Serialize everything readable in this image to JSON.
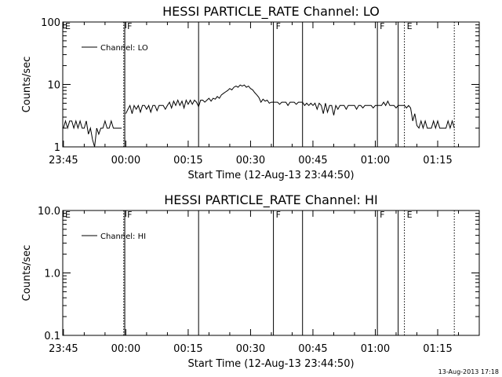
{
  "footer": {
    "timestamp": "13-Aug-2013 17:18"
  },
  "chart_data": [
    {
      "type": "line",
      "title": "HESSI PARTICLE_RATE Channel: LO",
      "xlabel": "Start Time (12-Aug-13 23:44:50)",
      "ylabel": "Counts/sec",
      "y_scale": "log",
      "ylim": [
        1,
        100
      ],
      "y_ticks": [
        1,
        10,
        100
      ],
      "y_tick_labels": [
        "1",
        "10",
        "100"
      ],
      "xlim": [
        "23:44:50",
        "01:25:00"
      ],
      "x_ticks": [
        "23:45",
        "00:00",
        "00:15",
        "00:30",
        "00:45",
        "01:00",
        "01:15"
      ],
      "legend": {
        "entries": [
          "Channel: LO"
        ],
        "placement": "top-left"
      },
      "markers": [
        {
          "label": "E",
          "time": "23:44:50",
          "style": "solid"
        },
        {
          "label": "",
          "time": "23:59:30",
          "style": "dotted"
        },
        {
          "label": "F",
          "time": "23:59:45",
          "style": "solid"
        },
        {
          "label": "",
          "time": "00:17:30",
          "style": "solid"
        },
        {
          "label": "F",
          "time": "00:35:30",
          "style": "solid"
        },
        {
          "label": "",
          "time": "00:42:30",
          "style": "solid"
        },
        {
          "label": "F",
          "time": "01:00:30",
          "style": "solid"
        },
        {
          "label": "",
          "time": "01:05:30",
          "style": "solid"
        },
        {
          "label": "E",
          "time": "01:07:00",
          "style": "dotted"
        },
        {
          "label": "",
          "time": "01:19:00",
          "style": "dotted"
        }
      ],
      "series": [
        {
          "segments": [
            [
              [
                "23:45",
                2
              ],
              [
                "23:45:30",
                2.6
              ],
              [
                "23:46",
                2
              ],
              [
                "23:46:30",
                2.6
              ],
              [
                "23:47",
                2.6
              ],
              [
                "23:47:30",
                2
              ],
              [
                "23:48",
                2.6
              ],
              [
                "23:48:30",
                2
              ],
              [
                "23:49",
                2.6
              ],
              [
                "23:49:30",
                2
              ],
              [
                "23:50",
                2
              ],
              [
                "23:50:30",
                2.6
              ],
              [
                "23:51",
                1.6
              ],
              [
                "23:51:30",
                2
              ],
              [
                "23:52",
                1.3
              ],
              [
                "23:52:30",
                1
              ],
              [
                "23:53",
                2
              ],
              [
                "23:53:30",
                1.6
              ],
              [
                "23:54",
                2
              ],
              [
                "23:54:30",
                2
              ],
              [
                "23:55",
                2.6
              ],
              [
                "23:55:30",
                2
              ],
              [
                "23:56",
                2
              ],
              [
                "23:56:30",
                2.6
              ],
              [
                "23:57",
                2
              ],
              [
                "23:57:30",
                2
              ],
              [
                "23:58",
                2
              ],
              [
                "23:58:30",
                2
              ],
              [
                "23:59",
                2
              ]
            ],
            [
              [
                "00:00",
                3.4
              ],
              [
                "00:00:30",
                4
              ],
              [
                "00:01",
                4.6
              ],
              [
                "00:01:30",
                3.4
              ],
              [
                "00:02",
                4.6
              ],
              [
                "00:02:30",
                4
              ],
              [
                "00:03",
                4.6
              ],
              [
                "00:03:30",
                3.6
              ],
              [
                "00:04",
                4.6
              ],
              [
                "00:04:30",
                4.6
              ],
              [
                "00:05",
                4
              ],
              [
                "00:05:30",
                4.6
              ],
              [
                "00:06",
                3.6
              ],
              [
                "00:06:30",
                4.6
              ],
              [
                "00:07",
                4.6
              ],
              [
                "00:07:30",
                3.8
              ],
              [
                "00:08",
                4.6
              ],
              [
                "00:08:30",
                4.6
              ],
              [
                "00:09",
                4.6
              ],
              [
                "00:09:30",
                4
              ],
              [
                "00:10",
                4.6
              ],
              [
                "00:10:30",
                5.2
              ],
              [
                "00:11",
                4.2
              ],
              [
                "00:11:30",
                5.4
              ],
              [
                "00:12",
                4.6
              ],
              [
                "00:12:30",
                5.6
              ],
              [
                "00:13",
                4.6
              ],
              [
                "00:13:30",
                5.4
              ],
              [
                "00:14",
                4.2
              ],
              [
                "00:14:30",
                5.6
              ],
              [
                "00:15",
                4.8
              ],
              [
                "00:15:30",
                5.6
              ],
              [
                "00:16",
                4.8
              ],
              [
                "00:16:30",
                5.6
              ],
              [
                "00:17",
                5.2
              ],
              [
                "00:17:30",
                4.4
              ],
              [
                "00:18",
                5.6
              ],
              [
                "00:18:30",
                5.6
              ],
              [
                "00:19",
                5.2
              ],
              [
                "00:19:30",
                5.6
              ],
              [
                "00:20",
                6
              ],
              [
                "00:20:30",
                5.4
              ],
              [
                "00:21",
                6
              ],
              [
                "00:21:30",
                5.8
              ],
              [
                "00:22",
                6.4
              ],
              [
                "00:22:30",
                6
              ],
              [
                "00:23",
                6.8
              ],
              [
                "00:23:30",
                7.2
              ],
              [
                "00:24",
                7.6
              ],
              [
                "00:24:30",
                8
              ],
              [
                "00:25",
                8.6
              ],
              [
                "00:25:30",
                8.2
              ],
              [
                "00:26",
                9
              ],
              [
                "00:26:30",
                9.4
              ],
              [
                "00:27",
                9
              ],
              [
                "00:27:30",
                9.8
              ],
              [
                "00:28",
                9.4
              ],
              [
                "00:28:30",
                9.8
              ],
              [
                "00:29",
                9
              ],
              [
                "00:29:30",
                9.4
              ],
              [
                "00:30",
                8.6
              ],
              [
                "00:30:30",
                8.2
              ],
              [
                "00:31",
                7.4
              ],
              [
                "00:31:30",
                6.8
              ],
              [
                "00:32",
                6.2
              ],
              [
                "00:32:30",
                5.2
              ],
              [
                "00:33",
                5.8
              ],
              [
                "00:33:30",
                5.4
              ],
              [
                "00:34",
                5.6
              ],
              [
                "00:34:30",
                5
              ],
              [
                "00:35",
                5.2
              ],
              [
                "00:35:30",
                5.2
              ],
              [
                "00:36",
                5.2
              ],
              [
                "00:36:30",
                5.2
              ],
              [
                "00:37",
                4.8
              ],
              [
                "00:37:30",
                5.2
              ],
              [
                "00:38",
                5.2
              ],
              [
                "00:38:30",
                5.2
              ],
              [
                "00:39",
                4.6
              ],
              [
                "00:39:30",
                5.2
              ],
              [
                "00:40",
                5.2
              ],
              [
                "00:40:30",
                5.2
              ],
              [
                "00:41",
                4.8
              ],
              [
                "00:41:30",
                5.2
              ],
              [
                "00:42",
                5.2
              ],
              [
                "00:42:30",
                5.2
              ],
              [
                "00:43",
                4.6
              ],
              [
                "00:43:30",
                5
              ],
              [
                "00:44",
                4.6
              ],
              [
                "00:44:30",
                5
              ],
              [
                "00:45",
                4.6
              ],
              [
                "00:45:30",
                5
              ],
              [
                "00:46",
                4
              ],
              [
                "00:46:30",
                5
              ],
              [
                "00:47",
                4.6
              ],
              [
                "00:47:30",
                3.4
              ],
              [
                "00:48",
                5
              ],
              [
                "00:48:30",
                3.6
              ],
              [
                "00:49",
                4.6
              ],
              [
                "00:49:30",
                4.6
              ],
              [
                "00:50",
                3.2
              ],
              [
                "00:50:30",
                4.6
              ],
              [
                "00:51",
                4
              ],
              [
                "00:51:30",
                4.6
              ],
              [
                "00:52",
                4.6
              ],
              [
                "00:52:30",
                4.6
              ],
              [
                "00:53",
                4
              ],
              [
                "00:53:30",
                4.6
              ],
              [
                "00:54",
                4.6
              ],
              [
                "00:54:30",
                4.6
              ],
              [
                "00:55",
                4.6
              ],
              [
                "00:55:30",
                4
              ],
              [
                "00:56",
                4.6
              ],
              [
                "00:56:30",
                4.6
              ],
              [
                "00:57",
                4.2
              ],
              [
                "00:57:30",
                4.6
              ],
              [
                "00:58",
                4.6
              ],
              [
                "00:58:30",
                4.6
              ],
              [
                "00:59",
                4.6
              ],
              [
                "00:59:30",
                4.2
              ],
              [
                "01:00",
                4.6
              ],
              [
                "01:00:30",
                4.6
              ],
              [
                "01:01",
                4.6
              ],
              [
                "01:01:30",
                4.6
              ],
              [
                "01:02",
                5.2
              ],
              [
                "01:02:30",
                4.6
              ],
              [
                "01:03",
                5.4
              ],
              [
                "01:03:30",
                4.6
              ],
              [
                "01:04",
                4.6
              ],
              [
                "01:04:30",
                4.6
              ],
              [
                "01:05",
                4.2
              ],
              [
                "01:05:30",
                4.6
              ],
              [
                "01:06",
                4.6
              ],
              [
                "01:06:30",
                4.6
              ],
              [
                "01:07",
                4.6
              ],
              [
                "01:07:30",
                4.2
              ],
              [
                "01:08",
                4.6
              ],
              [
                "01:08:30",
                4.2
              ],
              [
                "01:09",
                2.6
              ],
              [
                "01:09:30",
                3.4
              ],
              [
                "01:10",
                2.2
              ],
              [
                "01:10:30",
                2
              ],
              [
                "01:11",
                2.6
              ],
              [
                "01:11:30",
                2
              ],
              [
                "01:12",
                2.6
              ],
              [
                "01:12:30",
                2
              ],
              [
                "01:13",
                2
              ],
              [
                "01:13:30",
                2
              ],
              [
                "01:14",
                2.6
              ],
              [
                "01:14:30",
                2
              ],
              [
                "01:15",
                2.6
              ],
              [
                "01:15:30",
                2
              ],
              [
                "01:16",
                2
              ],
              [
                "01:16:30",
                2
              ],
              [
                "01:17",
                2
              ],
              [
                "01:17:30",
                2.6
              ],
              [
                "01:18",
                2
              ],
              [
                "01:18:30",
                2.6
              ],
              [
                "01:19",
                2
              ]
            ]
          ]
        }
      ]
    },
    {
      "type": "line",
      "title": "HESSI PARTICLE_RATE Channel: HI",
      "xlabel": "Start Time (12-Aug-13 23:44:50)",
      "ylabel": "Counts/sec",
      "y_scale": "log",
      "ylim": [
        0.1,
        10
      ],
      "y_ticks": [
        0.1,
        1,
        10
      ],
      "y_tick_labels": [
        "0.1",
        "1.0",
        "10.0"
      ],
      "xlim": [
        "23:44:50",
        "01:25:00"
      ],
      "x_ticks": [
        "23:45",
        "00:00",
        "00:15",
        "00:30",
        "00:45",
        "01:00",
        "01:15"
      ],
      "legend": {
        "entries": [
          "Channel: HI"
        ],
        "placement": "top-left"
      },
      "markers": [
        {
          "label": "E",
          "time": "23:44:50",
          "style": "solid"
        },
        {
          "label": "",
          "time": "23:59:30",
          "style": "dotted"
        },
        {
          "label": "F",
          "time": "23:59:45",
          "style": "solid"
        },
        {
          "label": "",
          "time": "00:17:30",
          "style": "solid"
        },
        {
          "label": "F",
          "time": "00:35:30",
          "style": "solid"
        },
        {
          "label": "",
          "time": "00:42:30",
          "style": "solid"
        },
        {
          "label": "F",
          "time": "01:00:30",
          "style": "solid"
        },
        {
          "label": "",
          "time": "01:05:30",
          "style": "solid"
        },
        {
          "label": "E",
          "time": "01:07:00",
          "style": "dotted"
        },
        {
          "label": "",
          "time": "01:19:00",
          "style": "dotted"
        }
      ],
      "series": [
        {
          "segments": []
        }
      ]
    }
  ]
}
